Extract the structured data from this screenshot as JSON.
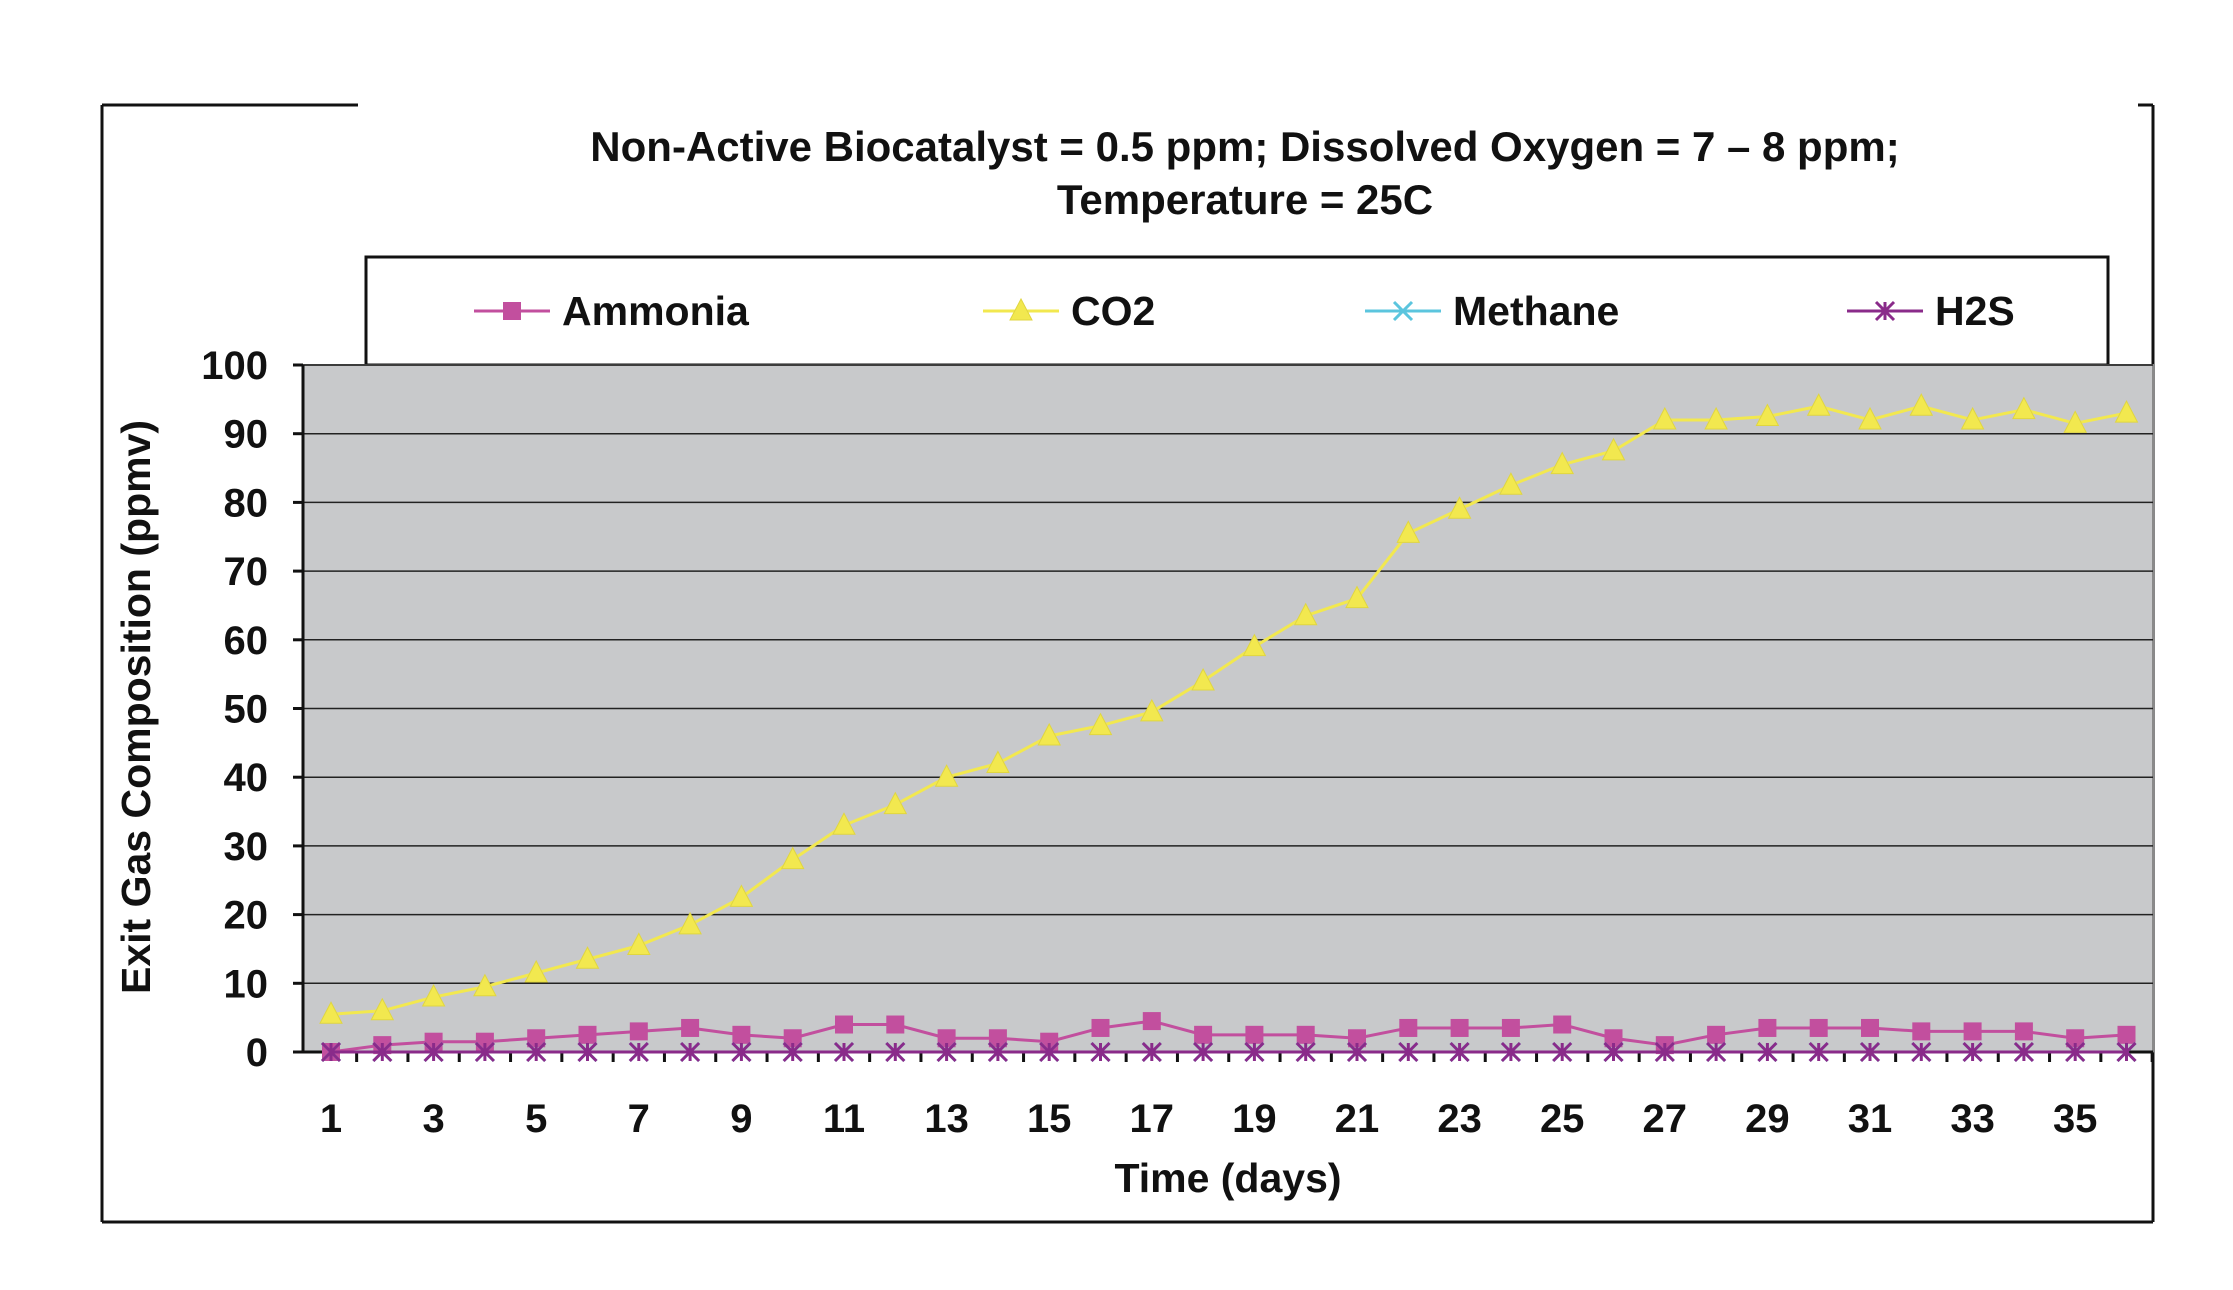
{
  "chart_data": {
    "type": "line",
    "title_lines": [
      "Non-Active Biocatalyst = 0.5 ppm; Dissolved Oxygen = 7 – 8 ppm;",
      "Temperature = 25C"
    ],
    "xlabel": "Time (days)",
    "ylabel": "Exit Gas Composition (ppmv)",
    "ylim": [
      0,
      100
    ],
    "yticks": [
      0,
      10,
      20,
      30,
      40,
      50,
      60,
      70,
      80,
      90,
      100
    ],
    "xticks": [
      1,
      3,
      5,
      7,
      9,
      11,
      13,
      15,
      17,
      19,
      21,
      23,
      25,
      27,
      29,
      31,
      33,
      35
    ],
    "x": [
      1,
      2,
      3,
      4,
      5,
      6,
      7,
      8,
      9,
      10,
      11,
      12,
      13,
      14,
      15,
      16,
      17,
      18,
      19,
      20,
      21,
      22,
      23,
      24,
      25,
      26,
      27,
      28,
      29,
      30,
      31,
      32,
      33,
      34,
      35,
      36
    ],
    "grid": "horizontal",
    "plot_background": "#c8c9cb",
    "legend_position": "top",
    "series": [
      {
        "name": "Ammonia",
        "color": "#c24f9e",
        "marker": "square",
        "values": [
          0,
          1,
          1.5,
          1.5,
          2,
          2.5,
          3,
          3.5,
          2.5,
          2,
          4,
          4,
          2,
          2,
          1.5,
          3.5,
          4.5,
          2.5,
          2.5,
          2.5,
          2,
          3.5,
          3.5,
          3.5,
          4,
          2,
          1,
          2.5,
          3.5,
          3.5,
          3.5,
          3,
          3,
          3,
          2,
          2.5
        ]
      },
      {
        "name": "CO2",
        "color": "#f2e84f",
        "marker": "triangle",
        "values": [
          5.5,
          6,
          8,
          9.5,
          11.5,
          13.5,
          15.5,
          18.5,
          22.5,
          28,
          33,
          36,
          40,
          42,
          46,
          47.5,
          49.5,
          54,
          59,
          63.5,
          66,
          75.5,
          79,
          82.5,
          85.5,
          87.5,
          92,
          92,
          92.5,
          94,
          92,
          94,
          92,
          93.5,
          91.5,
          93
        ]
      },
      {
        "name": "Methane",
        "color": "#5bc5de",
        "marker": "x",
        "values": [
          0,
          0,
          0,
          0,
          0,
          0,
          0,
          0,
          0,
          0,
          0,
          0,
          0,
          0,
          0,
          0,
          0,
          0,
          0,
          0,
          0,
          0,
          0,
          0,
          0,
          0,
          0,
          0,
          0,
          0,
          0,
          0,
          0,
          0,
          0,
          0
        ]
      },
      {
        "name": "H2S",
        "color": "#8a2b8a",
        "marker": "star",
        "values": [
          0,
          0,
          0,
          0,
          0,
          0,
          0,
          0,
          0,
          0,
          0,
          0,
          0,
          0,
          0,
          0,
          0,
          0,
          0,
          0,
          0,
          0,
          0,
          0,
          0,
          0,
          0,
          0,
          0,
          0,
          0,
          0,
          0,
          0,
          0,
          0
        ]
      }
    ]
  }
}
